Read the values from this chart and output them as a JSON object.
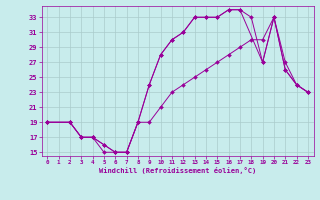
{
  "xlabel": "Windchill (Refroidissement éolien,°C)",
  "background_color": "#c8ecec",
  "line_color": "#990099",
  "grid_color": "#aacccc",
  "xlim": [
    -0.5,
    23.5
  ],
  "ylim": [
    14.5,
    34.5
  ],
  "yticks": [
    15,
    17,
    19,
    21,
    23,
    25,
    27,
    29,
    31,
    33
  ],
  "xticks": [
    0,
    1,
    2,
    3,
    4,
    5,
    6,
    7,
    8,
    9,
    10,
    11,
    12,
    13,
    14,
    15,
    16,
    17,
    18,
    19,
    20,
    21,
    22,
    23
  ],
  "line1_x": [
    0,
    2,
    3,
    4,
    5,
    6,
    7,
    8,
    9,
    10,
    11,
    12,
    13,
    14,
    15,
    16,
    17,
    19,
    20,
    21,
    22,
    23
  ],
  "line1_y": [
    19,
    19,
    17,
    17,
    16,
    15,
    15,
    19,
    24,
    28,
    30,
    31,
    33,
    33,
    33,
    34,
    34,
    27,
    33,
    26,
    24,
    23
  ],
  "line2_x": [
    0,
    2,
    3,
    4,
    5,
    6,
    7,
    8,
    9,
    10,
    11,
    12,
    13,
    14,
    15,
    16,
    17,
    18,
    19,
    20,
    21,
    22,
    23
  ],
  "line2_y": [
    19,
    19,
    17,
    17,
    16,
    15,
    15,
    19,
    24,
    28,
    30,
    31,
    33,
    33,
    33,
    34,
    34,
    33,
    27,
    33,
    26,
    24,
    23
  ],
  "line3_x": [
    0,
    2,
    3,
    4,
    5,
    6,
    7,
    8,
    9,
    10,
    11,
    12,
    13,
    14,
    15,
    16,
    17,
    18,
    19,
    20,
    21,
    22,
    23
  ],
  "line3_y": [
    19,
    19,
    17,
    17,
    15,
    15,
    15,
    19,
    19,
    21,
    23,
    24,
    25,
    26,
    27,
    28,
    29,
    30,
    30,
    33,
    27,
    24,
    23
  ]
}
